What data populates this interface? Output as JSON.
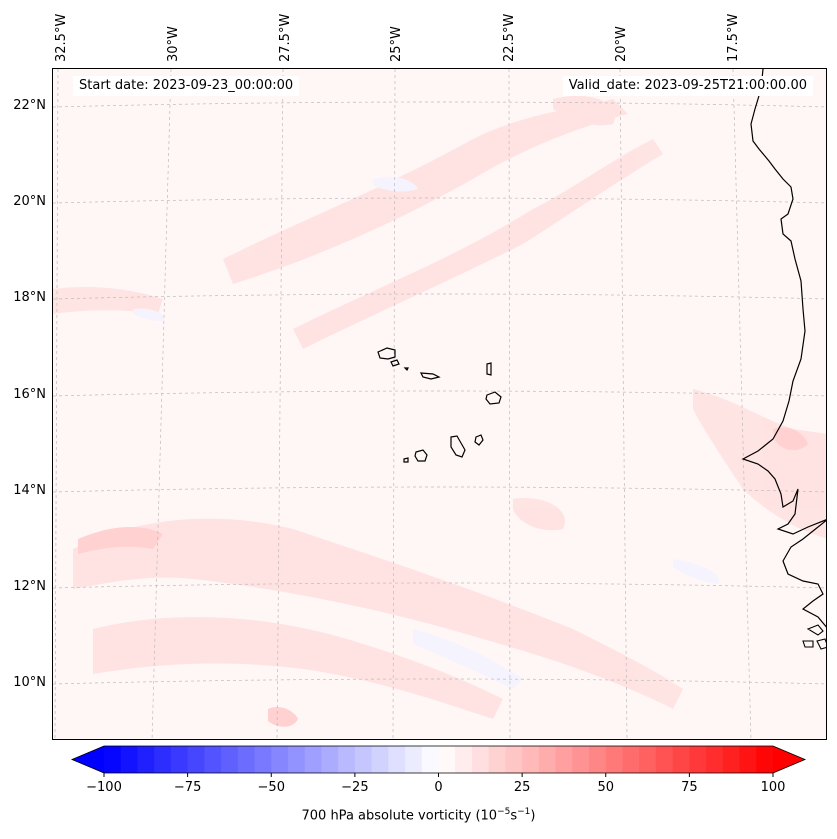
{
  "header": {
    "start_date": "Start date: 2023-09-23_00:00:00",
    "valid_date": "Valid_date: 2023-09-25T21:00:00.00"
  },
  "map": {
    "longitude_labels": [
      "32.5°W",
      "30°W",
      "27.5°W",
      "25°W",
      "22.5°W",
      "20°W",
      "17.5°W"
    ],
    "latitude_labels": [
      "22°N",
      "20°N",
      "18°N",
      "16°N",
      "14°N",
      "12°N",
      "10°N"
    ],
    "field": "700 hPa absolute vorticity",
    "colors": {
      "background_field": "#fff6f6",
      "positive_band_light": "#ffe2e2",
      "positive_band_mid": "#ffcece",
      "negative_band_light": "#f3f3ff",
      "coastline": "#000000",
      "gridline": "#bbbbbb"
    }
  },
  "colorbar": {
    "title_prefix": "700 hPa absolute vorticity (10",
    "title_exp1": "−5",
    "title_mid": "s",
    "title_exp2": "−1",
    "title_suffix": ")",
    "ticks": [
      "−100",
      "−75",
      "−50",
      "−25",
      "0",
      "25",
      "50",
      "75",
      "100"
    ],
    "min": -100,
    "max": 100,
    "colormap": "bwr",
    "extend": "both"
  }
}
